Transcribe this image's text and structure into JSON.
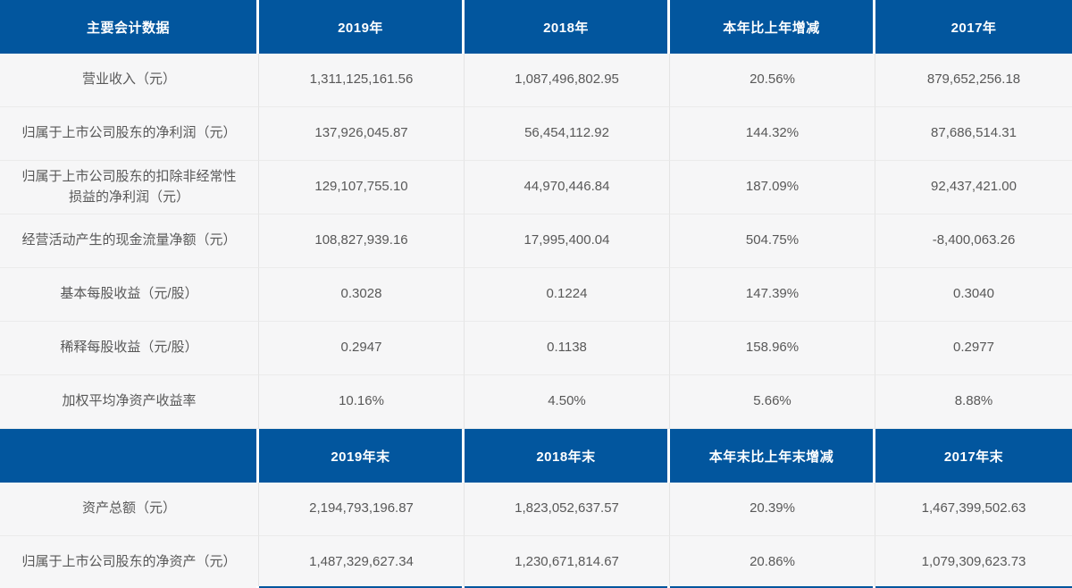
{
  "colors": {
    "header_bg": "#02569E",
    "header_text": "#ffffff",
    "row_bg": "#f6f6f7",
    "cell_text": "#585858",
    "divider": "#e4e4e4"
  },
  "annual": {
    "headers": [
      "主要会计数据",
      "2019年",
      "2018年",
      "本年比上年增减",
      "2017年"
    ],
    "rows": [
      [
        "营业收入（元）",
        "1,311,125,161.56",
        "1,087,496,802.95",
        "20.56%",
        "879,652,256.18"
      ],
      [
        "归属于上市公司股东的净利润（元）",
        "137,926,045.87",
        "56,454,112.92",
        "144.32%",
        "87,686,514.31"
      ],
      [
        "归属于上市公司股东的扣除非经常性损益的净利润（元）",
        "129,107,755.10",
        "44,970,446.84",
        "187.09%",
        "92,437,421.00"
      ],
      [
        "经营活动产生的现金流量净额（元）",
        "108,827,939.16",
        "17,995,400.04",
        "504.75%",
        "-8,400,063.26"
      ],
      [
        "基本每股收益（元/股）",
        "0.3028",
        "0.1224",
        "147.39%",
        "0.3040"
      ],
      [
        "稀释每股收益（元/股）",
        "0.2947",
        "0.1138",
        "158.96%",
        "0.2977"
      ],
      [
        "加权平均净资产收益率",
        "10.16%",
        "4.50%",
        "5.66%",
        "8.88%"
      ]
    ]
  },
  "year_end": {
    "headers": [
      "",
      "2019年末",
      "2018年末",
      "本年末比上年末增减",
      "2017年末"
    ],
    "rows": [
      [
        "资产总额（元）",
        "2,194,793,196.87",
        "1,823,052,637.57",
        "20.39%",
        "1,467,399,502.63"
      ],
      [
        "归属于上市公司股东的净资产（元）",
        "1,487,329,627.34",
        "1,230,671,814.67",
        "20.86%",
        "1,079,309,623.73"
      ]
    ]
  }
}
